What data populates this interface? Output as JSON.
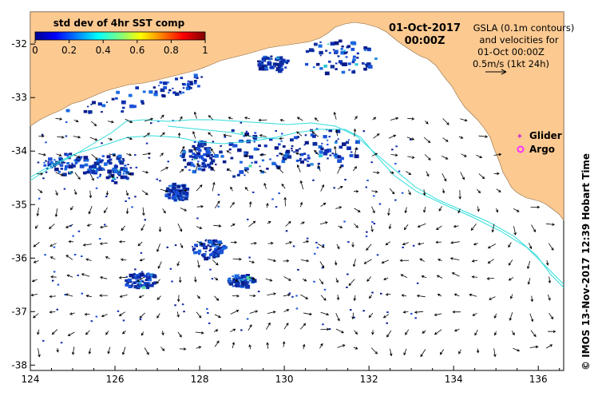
{
  "map": {
    "date": "01-Oct-2017",
    "time": "00:00Z",
    "info_lines": [
      "GSLA (0.1m contours)",
      "and velocities for",
      "01-Oct 00:00Z",
      "0.5m/s (1kt 24h)"
    ],
    "colorbar": {
      "title": "std dev of 4hr SST comp",
      "ticks": [
        "0",
        "0.2",
        "0.4",
        "0.6",
        "0.8",
        "1"
      ],
      "range": [
        0,
        1
      ]
    },
    "legend": [
      {
        "label": "Glider",
        "color": "#cc33cc"
      },
      {
        "label": "Argo",
        "color": "#ff33ff"
      }
    ],
    "credit": "© IMOS 13-Nov-2017 12:39 Hobart Time",
    "lon_ticks": [
      "124",
      "126",
      "128",
      "130",
      "132",
      "134",
      "136"
    ],
    "lat_ticks": [
      "-32",
      "-33",
      "-34",
      "-35",
      "-36",
      "-37",
      "-38"
    ],
    "lon_range": [
      124,
      136.6
    ],
    "lat_range": [
      -38.1,
      -31.4
    ],
    "colors": {
      "land": "#fcc991",
      "ocean": "#ffffff",
      "contour": "#33dddd",
      "sst_low": "#102070"
    }
  }
}
